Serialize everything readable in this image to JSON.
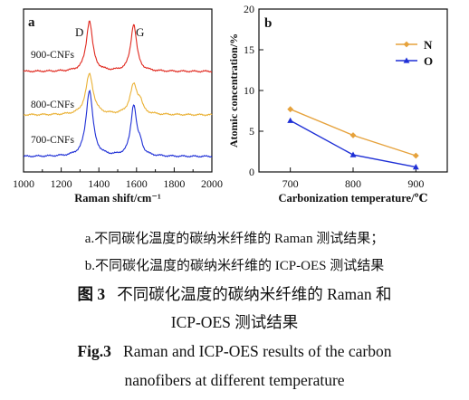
{
  "figure_a": {
    "panel_label": "a",
    "peak_labels": [
      "D",
      "G"
    ],
    "curve_labels": [
      "900-CNFs",
      "800-CNFs",
      "700-CNFs"
    ],
    "xlabel": "Raman shift/cm⁻¹",
    "colors": {
      "900-CNFs": "#e0281e",
      "800-CNFs": "#eab135",
      "700-CNFs": "#1e2fd6"
    }
  },
  "chart_data": {
    "type": "line",
    "panel_label": "b",
    "x": [
      700,
      800,
      900
    ],
    "series": [
      {
        "name": "N",
        "values": [
          7.7,
          4.5,
          2.0
        ],
        "color": "#e6a23c"
      },
      {
        "name": "O",
        "values": [
          6.3,
          2.1,
          0.6
        ],
        "color": "#1e2fd6"
      }
    ],
    "xlabel": "Carbonization temperature/℃",
    "ylabel": "Atomic concentration/%",
    "xlim": [
      650,
      950
    ],
    "ylim": [
      0,
      20
    ],
    "legend": "top-right"
  },
  "captions": {
    "sub_a": "a.不同碳化温度的碳纳米纤维的 Raman 测试结果；",
    "sub_b": "b.不同碳化温度的碳纳米纤维的 ICP-OES 测试结果",
    "fig_cn_label": "图 3",
    "fig_cn_line1": "不同碳化温度的碳纳米纤维的 Raman 和",
    "fig_cn_line2": "ICP-OES 测试结果",
    "fig_en_label": "Fig.3",
    "fig_en_line1": "Raman and ICP-OES results of the carbon",
    "fig_en_line2": "nanofibers at different temperature"
  }
}
